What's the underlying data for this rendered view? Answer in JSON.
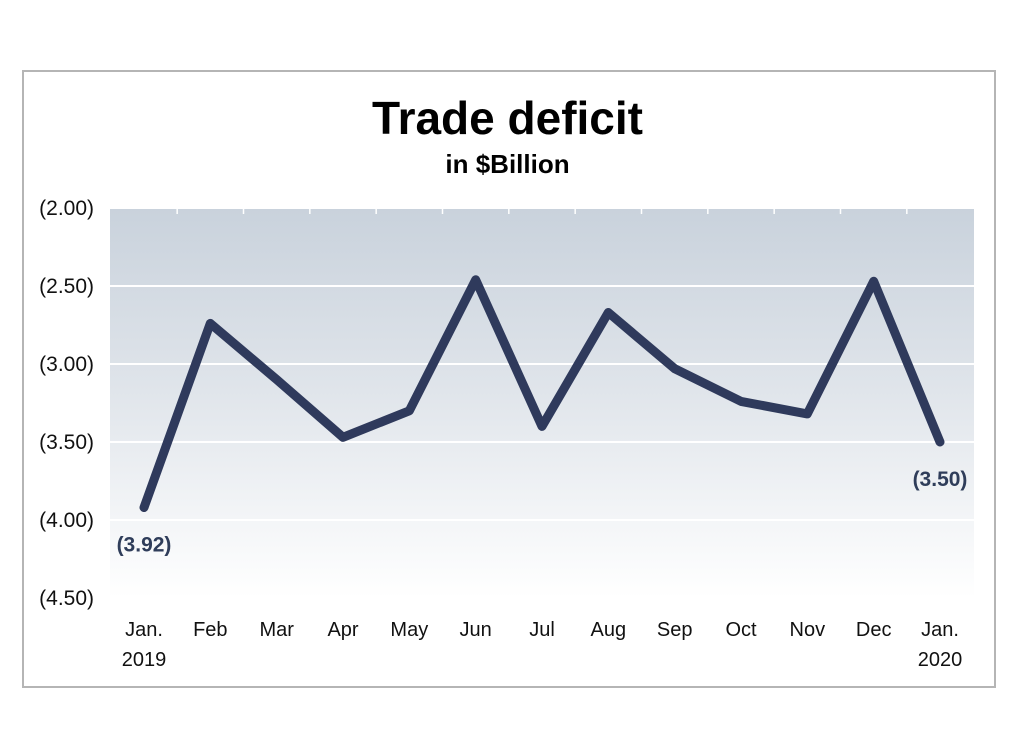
{
  "chart_data": {
    "type": "line",
    "title": "Trade deficit",
    "subtitle": "in $Billion",
    "categories": [
      [
        "Jan.",
        "2019"
      ],
      [
        "Feb"
      ],
      [
        "Mar"
      ],
      [
        "Apr"
      ],
      [
        "May"
      ],
      [
        "Jun"
      ],
      [
        "Jul"
      ],
      [
        "Aug"
      ],
      [
        "Sep"
      ],
      [
        "Oct"
      ],
      [
        "Nov"
      ],
      [
        "Dec"
      ],
      [
        "Jan.",
        "2020"
      ]
    ],
    "values": [
      -3.92,
      -2.74,
      -3.1,
      -3.47,
      -3.3,
      -2.46,
      -3.4,
      -2.67,
      -3.03,
      -3.24,
      -3.32,
      -2.47,
      -3.5
    ],
    "ylim": [
      -4.5,
      -2.0
    ],
    "yticks": [
      -2.0,
      -2.5,
      -3.0,
      -3.5,
      -4.0,
      -4.5
    ],
    "ytick_labels": [
      "(2.00)",
      "(2.50)",
      "(3.00)",
      "(3.50)",
      "(4.00)",
      "(4.50)"
    ],
    "data_labels": [
      {
        "index": 0,
        "text": "(3.92)",
        "position": "below"
      },
      {
        "index": 12,
        "text": "(3.50)",
        "position": "below"
      }
    ],
    "grid": true,
    "legend": "none",
    "colors": {
      "line": "#2f3a5c",
      "label": "#2f3d5a",
      "plot_bg_top": "#c9d2dc",
      "plot_bg_bottom": "#ffffff",
      "gridline": "#ffffff",
      "frame": "#b5b5b5"
    }
  }
}
